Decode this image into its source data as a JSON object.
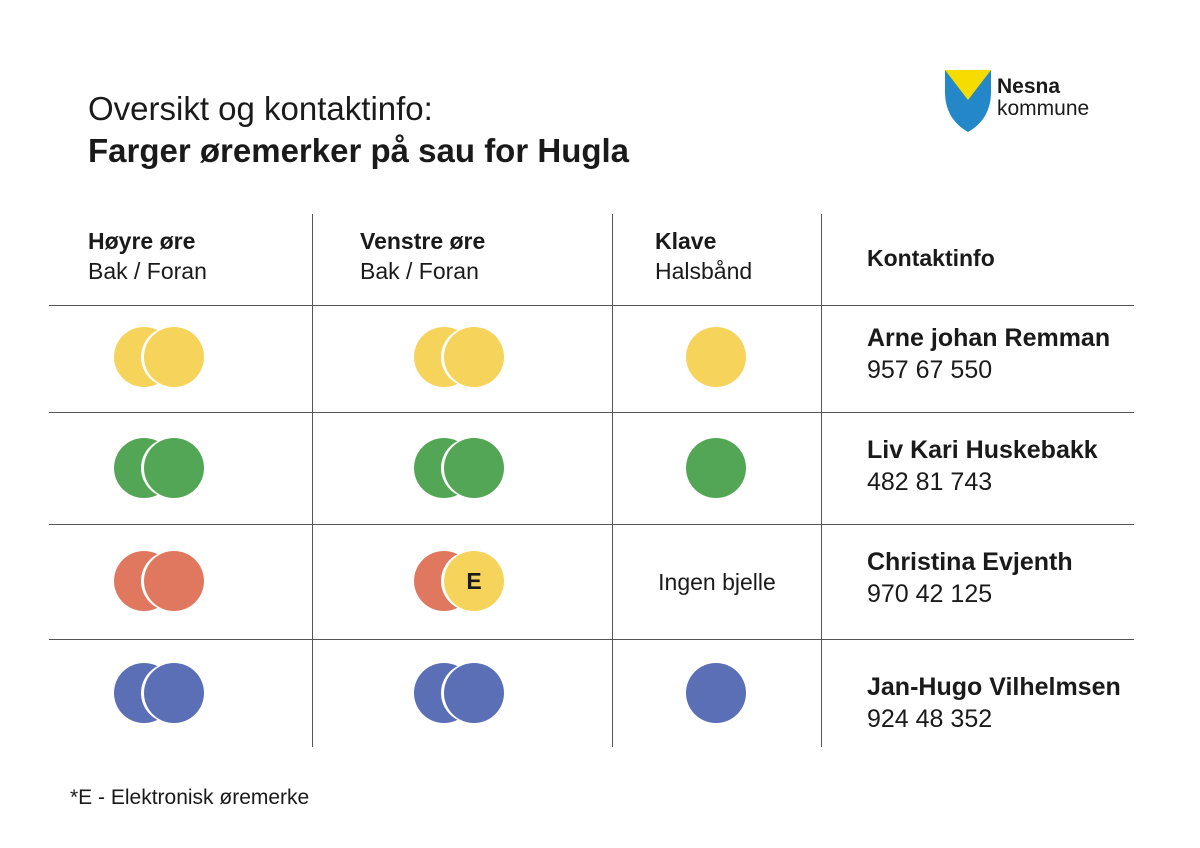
{
  "title": {
    "line1": "Oversikt og kontaktinfo:",
    "line2_prefix": "Farger øremerker på sau for ",
    "line2_place": "Hugla"
  },
  "logo": {
    "name": "Nesna",
    "sub": "kommune",
    "colors": {
      "blue": "#2487c8",
      "yellow": "#f7dc00"
    }
  },
  "headers": {
    "right_ear": {
      "title": "Høyre øre",
      "sub": "Bak / Foran"
    },
    "left_ear": {
      "title": "Venstre øre",
      "sub": "Bak / Foran"
    },
    "collar": {
      "title": "Klave",
      "sub": "Halsbånd"
    },
    "contact": {
      "title": "Kontaktinfo"
    }
  },
  "colors": {
    "yellow": "#f6d45c",
    "green": "#53a655",
    "red": "#e0785f",
    "blue": "#5b6fb6"
  },
  "rows": [
    {
      "right": [
        "yellow",
        "yellow"
      ],
      "left": [
        "yellow",
        "yellow"
      ],
      "collar": "yellow",
      "collar_text": "",
      "name": "Arne johan Remman",
      "phone": "957 67 550"
    },
    {
      "right": [
        "green",
        "green"
      ],
      "left": [
        "green",
        "green"
      ],
      "collar": "green",
      "collar_text": "",
      "name": "Liv Kari Huskebakk",
      "phone": "482 81 743"
    },
    {
      "right": [
        "red",
        "red"
      ],
      "left": [
        "red",
        "yellow"
      ],
      "left_mark": "E",
      "collar": null,
      "collar_text": "Ingen bjelle",
      "name": "Christina Evjenth",
      "phone": "970 42 125"
    },
    {
      "right": [
        "blue",
        "blue"
      ],
      "left": [
        "blue",
        "blue"
      ],
      "collar": "blue",
      "collar_text": "",
      "name": "Jan-Hugo Vilhelmsen",
      "phone": "924 48 352"
    }
  ],
  "footnote": "*E - Elektronisk øremerke"
}
